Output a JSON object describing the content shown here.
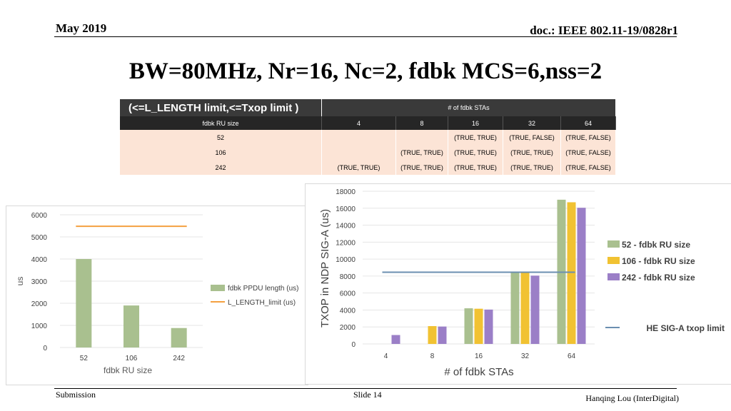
{
  "header": {
    "date": "May 2019",
    "doc": "doc.: IEEE 802.11-19/0828r1"
  },
  "title": "BW=80MHz, Nr=16, Nc=2, fdbk MCS=6,nss=2",
  "table": {
    "corner": "(<=L_LENGTH limit,<=Txop limit )",
    "group_header": "# of fdbk STAs",
    "row_header": "fdbk RU size",
    "columns": [
      "4",
      "8",
      "16",
      "32",
      "64"
    ],
    "rows": [
      {
        "ru": "52",
        "cells": [
          "",
          "",
          "(TRUE, TRUE)",
          "(TRUE, FALSE)",
          "(TRUE, FALSE)"
        ]
      },
      {
        "ru": "106",
        "cells": [
          "",
          "(TRUE, TRUE)",
          "(TRUE, TRUE)",
          "(TRUE, TRUE)",
          "(TRUE, FALSE)"
        ]
      },
      {
        "ru": "242",
        "cells": [
          "(TRUE, TRUE)",
          "(TRUE, TRUE)",
          "(TRUE, TRUE)",
          "(TRUE, TRUE)",
          "(TRUE, FALSE)"
        ]
      }
    ]
  },
  "chart_data": [
    {
      "type": "bar",
      "categories": [
        "52",
        "106",
        "242"
      ],
      "series": [
        {
          "name": "fdbk PPDU length (us)",
          "values": [
            4000,
            1900,
            880
          ]
        }
      ],
      "lines": [
        {
          "name": "L_LENGTH_limit (us)",
          "value": 5480
        }
      ],
      "xlabel": "fdbk RU size",
      "ylabel": "us",
      "ylim": [
        0,
        6000
      ],
      "yticks": [
        0,
        1000,
        2000,
        3000,
        4000,
        5000,
        6000
      ],
      "legend": "right",
      "colors": {
        "bar": "#a9c08f",
        "line": "#f4a040"
      }
    },
    {
      "type": "bar",
      "categories": [
        "4",
        "8",
        "16",
        "32",
        "64"
      ],
      "series": [
        {
          "name": "52 - fdbk RU size",
          "values": [
            null,
            null,
            4200,
            8500,
            17000
          ]
        },
        {
          "name": "106 - fdbk RU size",
          "values": [
            null,
            2100,
            4150,
            8450,
            16700
          ]
        },
        {
          "name": "242 - fdbk RU size",
          "values": [
            1050,
            2050,
            4050,
            8050,
            16050
          ]
        }
      ],
      "lines": [
        {
          "name": "HE SIG-A txop limit",
          "value": 8450
        }
      ],
      "xlabel": "# of fdbk STAs",
      "ylabel": "TXOP in NDP SIG-A (us)",
      "ylim": [
        0,
        18000
      ],
      "yticks": [
        0,
        2000,
        4000,
        6000,
        8000,
        10000,
        12000,
        14000,
        16000,
        18000
      ],
      "legend": "right",
      "colors": {
        "series": [
          "#a9c08f",
          "#f1c232",
          "#9b7fc7"
        ],
        "line": "#6b8fb0"
      }
    }
  ],
  "footer": {
    "left": "Submission",
    "center": "Slide 14",
    "right": "Hanqing Lou (InterDigital)"
  }
}
